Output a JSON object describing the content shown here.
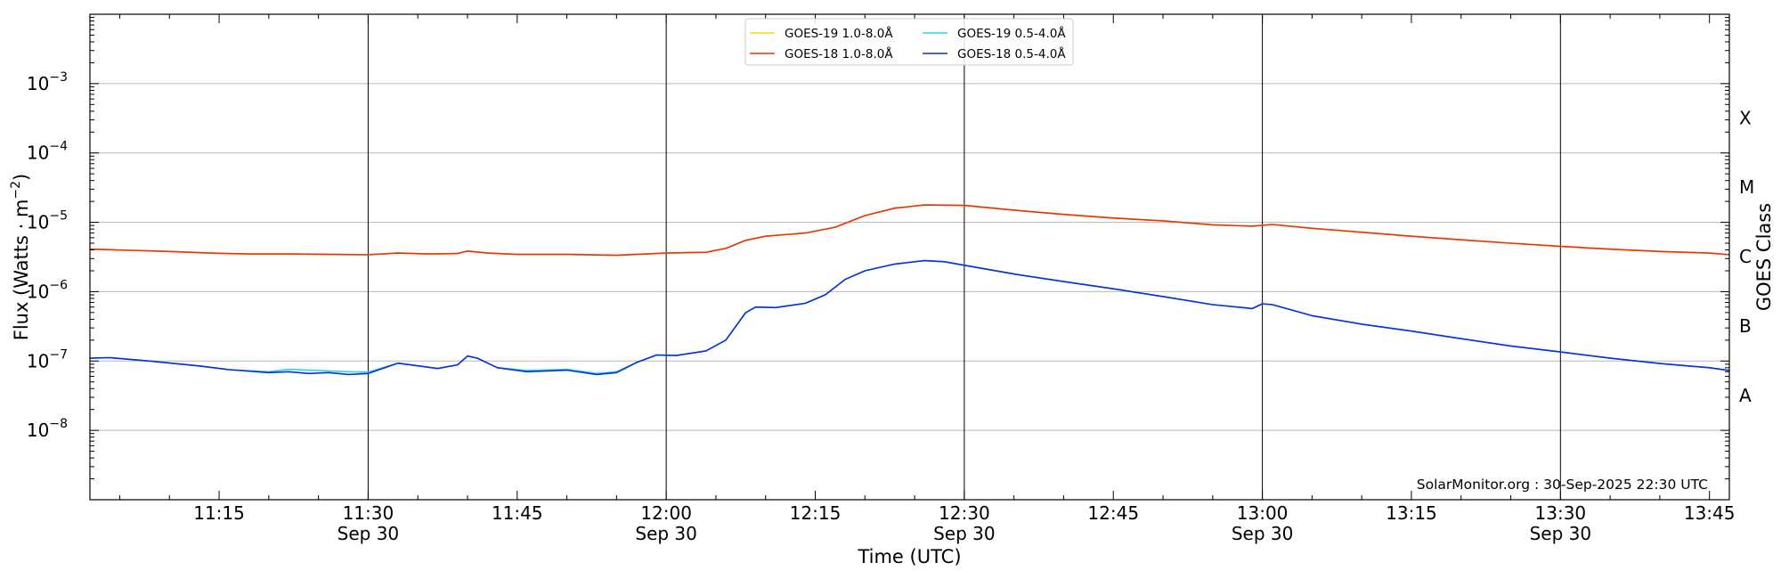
{
  "chart_data": {
    "type": "line",
    "xlabel": "Time (UTC)",
    "ylabel": "Flux (Watts · m",
    "ylabel_sup": "−2",
    "ylabel_close": ")",
    "right_label": "GOES Class",
    "credit": "SolarMonitor.org : 30-Sep-2025 22:30 UTC",
    "y_scale": "log",
    "ylim": [
      1e-09,
      0.01
    ],
    "xlim": [
      "11:02",
      "13:47"
    ],
    "grid": "horizontal",
    "legend_position": "top-center",
    "y_ticks": [
      {
        "value": 1e-08,
        "base": "10",
        "exp": "−8"
      },
      {
        "value": 1e-07,
        "base": "10",
        "exp": "−7"
      },
      {
        "value": 1e-06,
        "base": "10",
        "exp": "−6"
      },
      {
        "value": 1e-05,
        "base": "10",
        "exp": "−5"
      },
      {
        "value": 0.0001,
        "base": "10",
        "exp": "−4"
      },
      {
        "value": 0.001,
        "base": "10",
        "exp": "−3"
      }
    ],
    "x_ticks": [
      {
        "time": "11:15",
        "label": "11:15",
        "date": ""
      },
      {
        "time": "11:30",
        "label": "11:30",
        "date": "Sep 30"
      },
      {
        "time": "11:45",
        "label": "11:45",
        "date": ""
      },
      {
        "time": "12:00",
        "label": "12:00",
        "date": "Sep 30"
      },
      {
        "time": "12:15",
        "label": "12:15",
        "date": ""
      },
      {
        "time": "12:30",
        "label": "12:30",
        "date": "Sep 30"
      },
      {
        "time": "12:45",
        "label": "12:45",
        "date": ""
      },
      {
        "time": "13:00",
        "label": "13:00",
        "date": "Sep 30"
      },
      {
        "time": "13:15",
        "label": "13:15",
        "date": ""
      },
      {
        "time": "13:30",
        "label": "13:30",
        "date": "Sep 30"
      },
      {
        "time": "13:45",
        "label": "13:45",
        "date": ""
      }
    ],
    "vertical_lines": [
      "11:30",
      "12:00",
      "12:30",
      "13:00",
      "13:30"
    ],
    "classes": [
      {
        "label": "A",
        "value": 3.2e-08
      },
      {
        "label": "B",
        "value": 3.2e-07
      },
      {
        "label": "C",
        "value": 3.2e-06
      },
      {
        "label": "M",
        "value": 3.2e-05
      },
      {
        "label": "X",
        "value": 0.00032
      }
    ],
    "series": [
      {
        "name": "GOES-19 1.0-8.0Å",
        "color": "#ffd700",
        "points": [
          [
            "11:02",
            4.1e-06
          ],
          [
            "11:06",
            3.95e-06
          ],
          [
            "11:10",
            3.8e-06
          ],
          [
            "11:14",
            3.6e-06
          ],
          [
            "11:18",
            3.5e-06
          ],
          [
            "11:22",
            3.5e-06
          ],
          [
            "11:26",
            3.45e-06
          ],
          [
            "11:30",
            3.4e-06
          ],
          [
            "11:33",
            3.6e-06
          ],
          [
            "11:36",
            3.5e-06
          ],
          [
            "11:39",
            3.55e-06
          ],
          [
            "11:40",
            3.85e-06
          ],
          [
            "11:42",
            3.6e-06
          ],
          [
            "11:45",
            3.45e-06
          ],
          [
            "11:50",
            3.45e-06
          ],
          [
            "11:55",
            3.35e-06
          ],
          [
            "12:00",
            3.6e-06
          ],
          [
            "12:04",
            3.7e-06
          ],
          [
            "12:06",
            4.2e-06
          ],
          [
            "12:08",
            5.5e-06
          ],
          [
            "12:10",
            6.3e-06
          ],
          [
            "12:14",
            7e-06
          ],
          [
            "12:17",
            8.5e-06
          ],
          [
            "12:20",
            1.25e-05
          ],
          [
            "12:23",
            1.6e-05
          ],
          [
            "12:26",
            1.78e-05
          ],
          [
            "12:30",
            1.75e-05
          ],
          [
            "12:35",
            1.5e-05
          ],
          [
            "12:40",
            1.3e-05
          ],
          [
            "12:45",
            1.15e-05
          ],
          [
            "12:50",
            1.05e-05
          ],
          [
            "12:55",
            9.2e-06
          ],
          [
            "12:59",
            8.8e-06
          ],
          [
            "13:01",
            9.3e-06
          ],
          [
            "13:05",
            8.2e-06
          ],
          [
            "13:10",
            7.2e-06
          ],
          [
            "13:15",
            6.3e-06
          ],
          [
            "13:20",
            5.6e-06
          ],
          [
            "13:25",
            5e-06
          ],
          [
            "13:30",
            4.5e-06
          ],
          [
            "13:35",
            4.1e-06
          ],
          [
            "13:40",
            3.8e-06
          ],
          [
            "13:45",
            3.6e-06
          ],
          [
            "13:47",
            3.4e-06
          ]
        ]
      },
      {
        "name": "GOES-18 1.0-8.0Å",
        "color": "#e8320c",
        "points": [
          [
            "11:02",
            4.1e-06
          ],
          [
            "11:06",
            3.95e-06
          ],
          [
            "11:10",
            3.8e-06
          ],
          [
            "11:14",
            3.6e-06
          ],
          [
            "11:18",
            3.5e-06
          ],
          [
            "11:22",
            3.5e-06
          ],
          [
            "11:26",
            3.45e-06
          ],
          [
            "11:30",
            3.4e-06
          ],
          [
            "11:33",
            3.6e-06
          ],
          [
            "11:36",
            3.5e-06
          ],
          [
            "11:39",
            3.55e-06
          ],
          [
            "11:40",
            3.85e-06
          ],
          [
            "11:42",
            3.6e-06
          ],
          [
            "11:45",
            3.45e-06
          ],
          [
            "11:50",
            3.45e-06
          ],
          [
            "11:55",
            3.35e-06
          ],
          [
            "12:00",
            3.6e-06
          ],
          [
            "12:04",
            3.7e-06
          ],
          [
            "12:06",
            4.2e-06
          ],
          [
            "12:08",
            5.5e-06
          ],
          [
            "12:10",
            6.3e-06
          ],
          [
            "12:14",
            7e-06
          ],
          [
            "12:17",
            8.5e-06
          ],
          [
            "12:20",
            1.25e-05
          ],
          [
            "12:23",
            1.6e-05
          ],
          [
            "12:26",
            1.78e-05
          ],
          [
            "12:30",
            1.75e-05
          ],
          [
            "12:35",
            1.5e-05
          ],
          [
            "12:40",
            1.3e-05
          ],
          [
            "12:45",
            1.15e-05
          ],
          [
            "12:50",
            1.05e-05
          ],
          [
            "12:55",
            9.2e-06
          ],
          [
            "12:59",
            8.8e-06
          ],
          [
            "13:01",
            9.3e-06
          ],
          [
            "13:05",
            8.2e-06
          ],
          [
            "13:10",
            7.2e-06
          ],
          [
            "13:15",
            6.3e-06
          ],
          [
            "13:20",
            5.6e-06
          ],
          [
            "13:25",
            5e-06
          ],
          [
            "13:30",
            4.5e-06
          ],
          [
            "13:35",
            4.1e-06
          ],
          [
            "13:40",
            3.8e-06
          ],
          [
            "13:45",
            3.6e-06
          ],
          [
            "13:47",
            3.4e-06
          ]
        ]
      },
      {
        "name": "GOES-19 0.5-4.0Å",
        "color": "#2ad4ef",
        "points": [
          [
            "11:02",
            1.1e-07
          ],
          [
            "11:04",
            1.12e-07
          ],
          [
            "11:08",
            1e-07
          ],
          [
            "11:13",
            8.5e-08
          ],
          [
            "11:16",
            7.5e-08
          ],
          [
            "11:20",
            7e-08
          ],
          [
            "11:22",
            7.6e-08
          ],
          [
            "11:26",
            7.2e-08
          ],
          [
            "11:28",
            7e-08
          ],
          [
            "11:30",
            6.9e-08
          ],
          [
            "11:33",
            9.3e-08
          ],
          [
            "11:37",
            7.8e-08
          ],
          [
            "11:39",
            8.8e-08
          ],
          [
            "11:40",
            1.18e-07
          ],
          [
            "11:41",
            1.1e-07
          ],
          [
            "11:43",
            8e-08
          ],
          [
            "11:46",
            7.3e-08
          ],
          [
            "11:50",
            7.6e-08
          ],
          [
            "11:53",
            6.6e-08
          ],
          [
            "11:55",
            7e-08
          ],
          [
            "11:57",
            9.5e-08
          ],
          [
            "11:59",
            1.22e-07
          ],
          [
            "12:01",
            1.2e-07
          ],
          [
            "12:04",
            1.4e-07
          ],
          [
            "12:06",
            2e-07
          ],
          [
            "12:08",
            5e-07
          ],
          [
            "12:09",
            6e-07
          ],
          [
            "12:11",
            5.9e-07
          ],
          [
            "12:14",
            6.8e-07
          ],
          [
            "12:16",
            9e-07
          ],
          [
            "12:18",
            1.5e-06
          ],
          [
            "12:20",
            2e-06
          ],
          [
            "12:23",
            2.5e-06
          ],
          [
            "12:26",
            2.8e-06
          ],
          [
            "12:28",
            2.7e-06
          ],
          [
            "12:30",
            2.4e-06
          ],
          [
            "12:35",
            1.8e-06
          ],
          [
            "12:40",
            1.4e-06
          ],
          [
            "12:45",
            1.1e-06
          ],
          [
            "12:50",
            8.5e-07
          ],
          [
            "12:55",
            6.5e-07
          ],
          [
            "12:59",
            5.7e-07
          ],
          [
            "13:00",
            6.7e-07
          ],
          [
            "13:01",
            6.5e-07
          ],
          [
            "13:05",
            4.5e-07
          ],
          [
            "13:10",
            3.4e-07
          ],
          [
            "13:15",
            2.7e-07
          ],
          [
            "13:20",
            2.1e-07
          ],
          [
            "13:25",
            1.65e-07
          ],
          [
            "13:30",
            1.35e-07
          ],
          [
            "13:35",
            1.1e-07
          ],
          [
            "13:40",
            9.2e-08
          ],
          [
            "13:45",
            8e-08
          ],
          [
            "13:47",
            7.3e-08
          ]
        ]
      },
      {
        "name": "GOES-18 0.5-4.0Å",
        "color": "#0b2fd6",
        "points": [
          [
            "11:02",
            1.1e-07
          ],
          [
            "11:04",
            1.12e-07
          ],
          [
            "11:08",
            1e-07
          ],
          [
            "11:13",
            8.5e-08
          ],
          [
            "11:16",
            7.5e-08
          ],
          [
            "11:20",
            6.8e-08
          ],
          [
            "11:22",
            7e-08
          ],
          [
            "11:24",
            6.6e-08
          ],
          [
            "11:26",
            6.8e-08
          ],
          [
            "11:28",
            6.4e-08
          ],
          [
            "11:30",
            6.6e-08
          ],
          [
            "11:33",
            9.3e-08
          ],
          [
            "11:37",
            7.8e-08
          ],
          [
            "11:39",
            8.8e-08
          ],
          [
            "11:40",
            1.18e-07
          ],
          [
            "11:41",
            1.1e-07
          ],
          [
            "11:43",
            8e-08
          ],
          [
            "11:46",
            7e-08
          ],
          [
            "11:50",
            7.4e-08
          ],
          [
            "11:53",
            6.4e-08
          ],
          [
            "11:55",
            6.8e-08
          ],
          [
            "11:57",
            9.5e-08
          ],
          [
            "11:59",
            1.22e-07
          ],
          [
            "12:01",
            1.2e-07
          ],
          [
            "12:04",
            1.4e-07
          ],
          [
            "12:06",
            2e-07
          ],
          [
            "12:08",
            5e-07
          ],
          [
            "12:09",
            6e-07
          ],
          [
            "12:11",
            5.9e-07
          ],
          [
            "12:14",
            6.8e-07
          ],
          [
            "12:16",
            9e-07
          ],
          [
            "12:18",
            1.5e-06
          ],
          [
            "12:20",
            2e-06
          ],
          [
            "12:23",
            2.5e-06
          ],
          [
            "12:26",
            2.8e-06
          ],
          [
            "12:28",
            2.7e-06
          ],
          [
            "12:30",
            2.4e-06
          ],
          [
            "12:35",
            1.8e-06
          ],
          [
            "12:40",
            1.4e-06
          ],
          [
            "12:45",
            1.1e-06
          ],
          [
            "12:50",
            8.5e-07
          ],
          [
            "12:55",
            6.5e-07
          ],
          [
            "12:59",
            5.7e-07
          ],
          [
            "13:00",
            6.7e-07
          ],
          [
            "13:01",
            6.5e-07
          ],
          [
            "13:05",
            4.5e-07
          ],
          [
            "13:10",
            3.4e-07
          ],
          [
            "13:15",
            2.7e-07
          ],
          [
            "13:20",
            2.1e-07
          ],
          [
            "13:25",
            1.65e-07
          ],
          [
            "13:30",
            1.35e-07
          ],
          [
            "13:35",
            1.1e-07
          ],
          [
            "13:40",
            9.2e-08
          ],
          [
            "13:45",
            8e-08
          ],
          [
            "13:47",
            7.3e-08
          ]
        ]
      }
    ],
    "legend_order": [
      0,
      2,
      1,
      3
    ]
  }
}
